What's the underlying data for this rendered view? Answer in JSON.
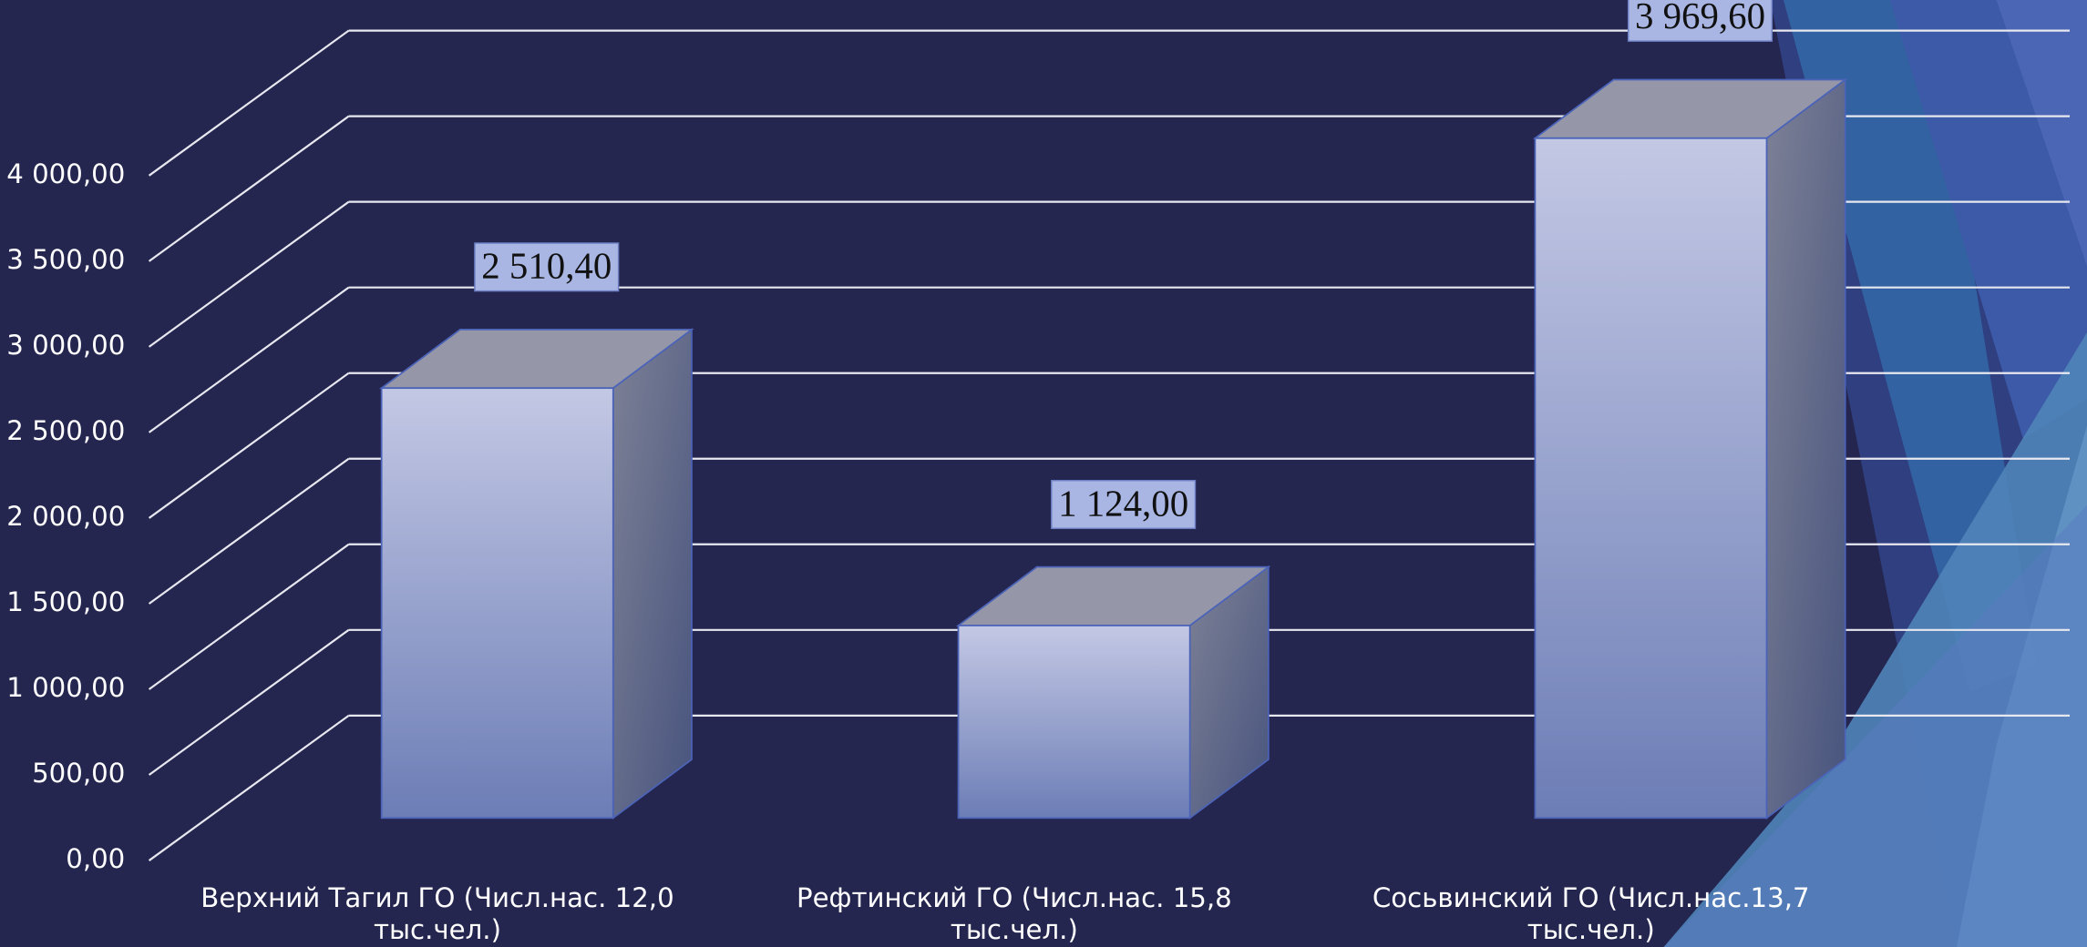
{
  "chart_data": {
    "type": "bar3d",
    "categories": [
      "Верхний Тагил ГО (Числ.нас. 12,0 тыс.чел.)",
      "Рефтинский ГО (Числ.нас. 15,8 тыс.чел.)",
      "Сосьвинский ГО (Числ.нас.13,7 тыс.чел.)"
    ],
    "values": [
      2510.4,
      1124,
      3969.6
    ],
    "value_labels": [
      "2 510,40",
      "1 124,00",
      "3 969,60"
    ],
    "color": "#8a97c9",
    "ylim": [
      0,
      4000
    ],
    "yticks": [
      {
        "value": 0,
        "label": "0,00"
      },
      {
        "value": 500,
        "label": "500,00"
      },
      {
        "value": 1000,
        "label": "1 000,00"
      },
      {
        "value": 1500,
        "label": "1 500,00"
      },
      {
        "value": 2000,
        "label": "2 000,00"
      },
      {
        "value": 2500,
        "label": "2 500,00"
      },
      {
        "value": 3000,
        "label": "3 000,00"
      },
      {
        "value": 3500,
        "label": "3 500,00"
      },
      {
        "value": 4000,
        "label": "4 000,00"
      }
    ],
    "grid": true
  }
}
